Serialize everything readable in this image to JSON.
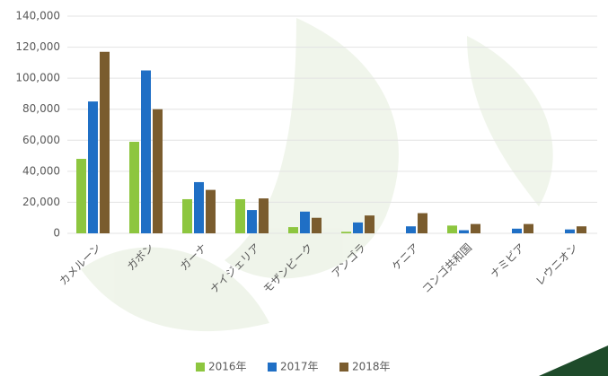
{
  "chart_data": {
    "type": "bar",
    "categories": [
      "カメルーン",
      "ガボン",
      "ガーナ",
      "ナイジェリア",
      "モザンビーク",
      "アンゴラ",
      "ケニア",
      "コンゴ共和国",
      "ナミビア",
      "レウニオン"
    ],
    "series": [
      {
        "name": "2016年",
        "color": "#8dc63f",
        "values": [
          48000,
          59000,
          22000,
          22000,
          4000,
          1000,
          0,
          5000,
          0,
          0
        ]
      },
      {
        "name": "2017年",
        "color": "#1f6fc5",
        "values": [
          85000,
          105000,
          33000,
          15000,
          14000,
          7000,
          4500,
          2000,
          3000,
          2500
        ]
      },
      {
        "name": "2018年",
        "color": "#7a5c2e",
        "values": [
          117000,
          80000,
          28000,
          22500,
          10000,
          11500,
          13000,
          6000,
          6000,
          4500
        ]
      }
    ],
    "ylim": [
      0,
      140000
    ],
    "yticks": [
      0,
      {
        "value": 20000,
        "label": "20,000"
      },
      {
        "value": 40000,
        "label": "40,000"
      },
      {
        "value": 60000,
        "label": "60,000"
      },
      {
        "value": 80000,
        "label": "80,000"
      },
      {
        "value": 100000,
        "label": "100,000"
      },
      {
        "value": 120000,
        "label": "120,000"
      },
      {
        "value": 140000,
        "label": "140,000"
      }
    ],
    "grid": true,
    "legend": "bottom"
  }
}
